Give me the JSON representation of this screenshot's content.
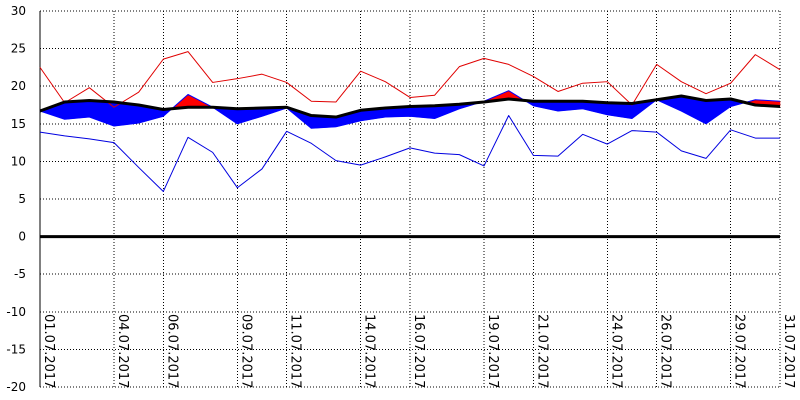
{
  "chart_data": {
    "type": "line",
    "title": "",
    "xlabel": "",
    "ylabel": "",
    "ylim": [
      -20,
      30
    ],
    "yticks": [
      30,
      25,
      20,
      15,
      10,
      5,
      0,
      -5,
      -10,
      -15,
      -20
    ],
    "x": [
      "01.07.2017",
      "02.07.2017",
      "03.07.2017",
      "04.07.2017",
      "05.07.2017",
      "06.07.2017",
      "07.07.2017",
      "08.07.2017",
      "09.07.2017",
      "10.07.2017",
      "11.07.2017",
      "12.07.2017",
      "13.07.2017",
      "14.07.2017",
      "15.07.2017",
      "16.07.2017",
      "17.07.2017",
      "18.07.2017",
      "19.07.2017",
      "20.07.2017",
      "21.07.2017",
      "22.07.2017",
      "23.07.2017",
      "24.07.2017",
      "25.07.2017",
      "26.07.2017",
      "27.07.2017",
      "28.07.2017",
      "29.07.2017",
      "30.07.2017",
      "31.07.2017"
    ],
    "xtick_labels": [
      "01.07.2017",
      "04.07.2017",
      "06.07.2017",
      "09.07.2017",
      "11.07.2017",
      "14.07.2017",
      "16.07.2017",
      "19.07.2017",
      "21.07.2017",
      "24.07.2017",
      "26.07.2017",
      "29.07.2017",
      "31.07.2017"
    ],
    "xtick_indices": [
      0,
      3,
      5,
      8,
      10,
      13,
      15,
      18,
      20,
      23,
      25,
      28,
      30
    ],
    "grid": true,
    "legend": "none",
    "series": [
      {
        "role": "max",
        "color": "#e00000",
        "values": [
          22.5,
          17.8,
          19.8,
          17.2,
          19.2,
          23.6,
          24.6,
          20.5,
          21.0,
          21.6,
          20.5,
          18.0,
          17.9,
          22.0,
          20.6,
          18.5,
          18.8,
          22.6,
          23.7,
          22.9,
          21.3,
          19.3,
          20.4,
          20.6,
          17.5,
          22.9,
          20.6,
          19.0,
          20.4,
          24.2,
          22.2
        ]
      },
      {
        "role": "observed",
        "color": "#0000ff",
        "values": [
          16.7,
          15.6,
          15.9,
          14.7,
          15.1,
          16.0,
          18.9,
          17.2,
          15.0,
          16.0,
          17.1,
          14.4,
          14.6,
          15.4,
          15.9,
          16.0,
          15.7,
          17.0,
          18.0,
          19.4,
          17.4,
          16.7,
          17.0,
          16.2,
          15.7,
          18.2,
          16.7,
          15.0,
          17.3,
          18.2,
          18.0
        ]
      },
      {
        "role": "normal",
        "color": "#000000",
        "values": [
          16.7,
          17.9,
          18.1,
          17.9,
          17.5,
          16.9,
          17.2,
          17.2,
          17.0,
          17.1,
          17.2,
          16.1,
          15.9,
          16.8,
          17.1,
          17.3,
          17.4,
          17.6,
          17.9,
          18.3,
          18.0,
          18.0,
          18.0,
          17.8,
          17.7,
          18.2,
          18.7,
          18.1,
          18.3,
          17.5,
          17.3
        ]
      },
      {
        "role": "min",
        "color": "#0000e0",
        "values": [
          13.9,
          13.4,
          13.0,
          12.5,
          9.2,
          6.0,
          13.2,
          11.2,
          6.5,
          9.0,
          14.0,
          12.4,
          10.1,
          9.5,
          10.6,
          11.8,
          11.1,
          10.9,
          9.4,
          16.1,
          10.8,
          10.7,
          13.6,
          12.3,
          14.1,
          13.9,
          11.4,
          10.4,
          14.2,
          13.1,
          13.1
        ]
      }
    ],
    "colors": {
      "above_normal_fill": "#ff0000",
      "below_normal_fill": "#0000ff",
      "zero_line": "#000000",
      "grid": "#000000"
    }
  }
}
